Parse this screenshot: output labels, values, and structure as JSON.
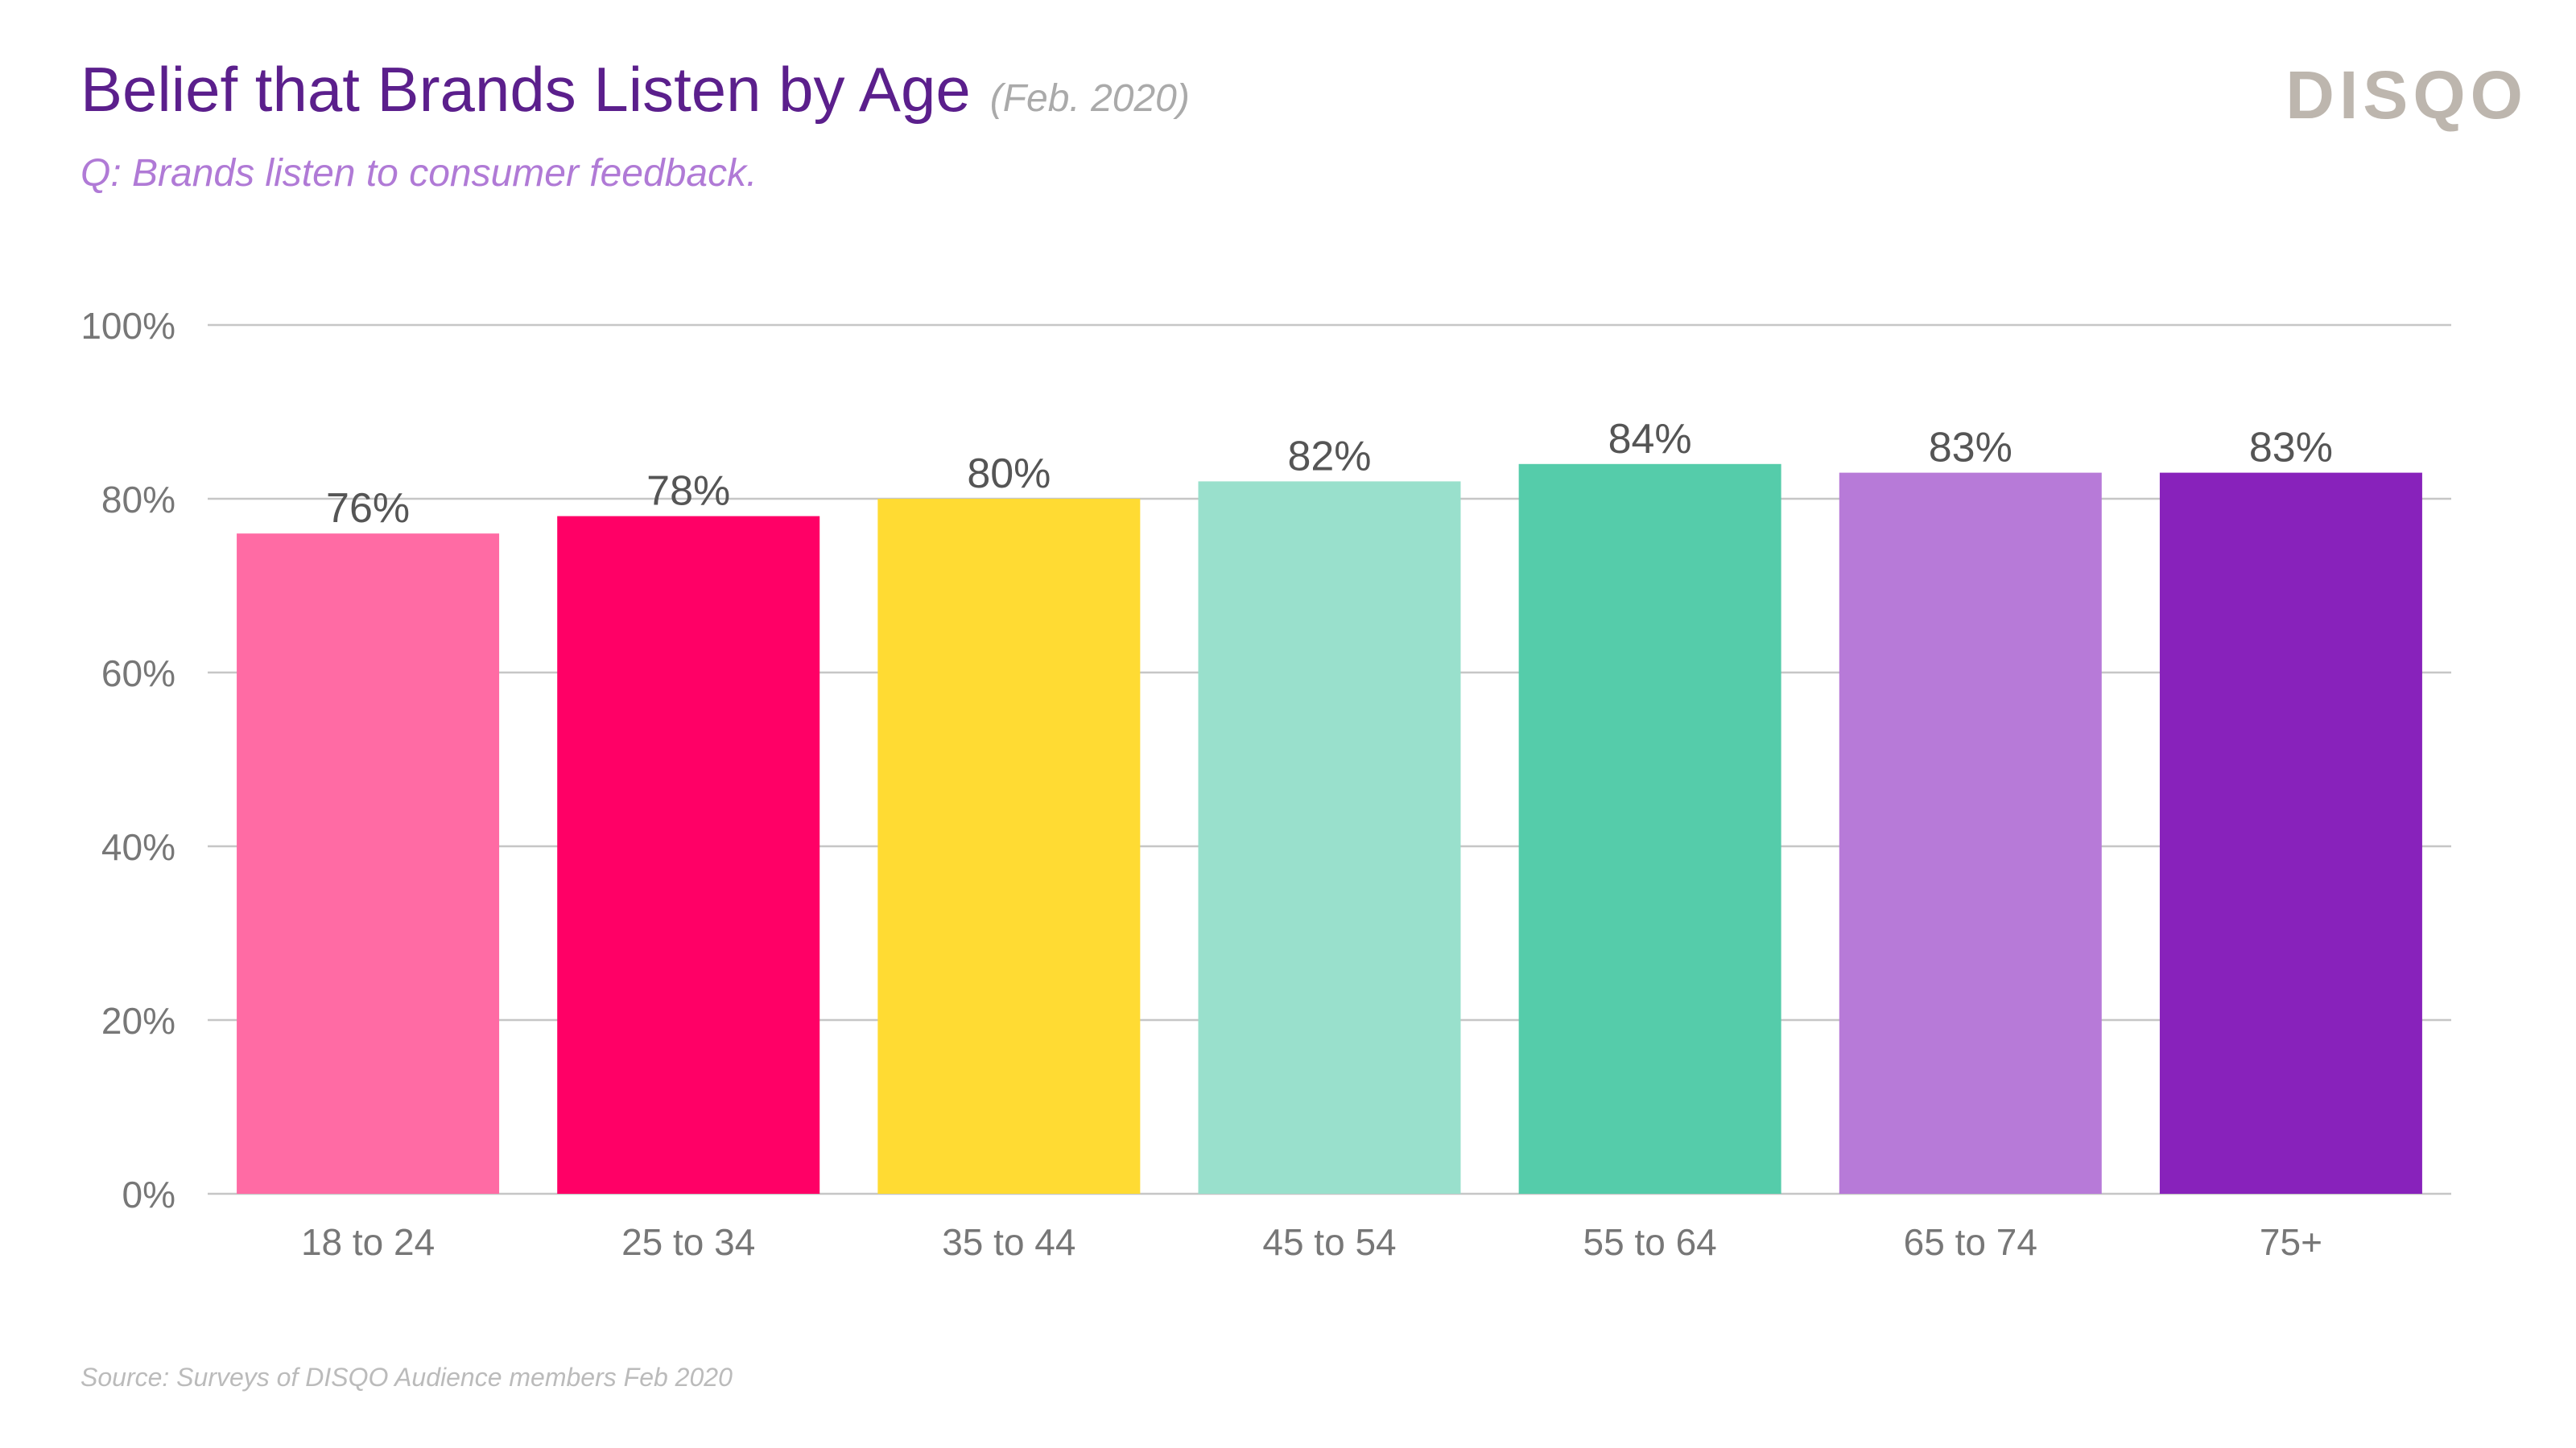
{
  "header": {
    "title": "Belief that Brands Listen by Age",
    "date": "(Feb. 2020)",
    "subtitle": "Q: Brands listen to consumer feedback."
  },
  "logo": {
    "text": "DISQO"
  },
  "footer": {
    "source": "Source: Surveys of DISQO Audience members Feb 2020"
  },
  "chart_data": {
    "type": "bar",
    "title": "Belief that Brands Listen by Age",
    "xlabel": "",
    "ylabel": "",
    "ylim": [
      0,
      100
    ],
    "y_ticks": [
      0,
      20,
      40,
      60,
      80,
      100
    ],
    "y_tick_labels": [
      "0%",
      "20%",
      "40%",
      "60%",
      "80%",
      "100%"
    ],
    "grid": true,
    "categories": [
      "18 to 24",
      "25 to 34",
      "35 to 44",
      "45 to 54",
      "55 to 64",
      "65 to 74",
      "75+"
    ],
    "values": [
      76,
      78,
      80,
      82,
      84,
      83,
      83
    ],
    "value_labels": [
      "76%",
      "78%",
      "80%",
      "82%",
      "84%",
      "83%",
      "83%"
    ],
    "colors": [
      "#ff6ba4",
      "#ff0066",
      "#ffdb33",
      "#99e0cc",
      "#55ccaa",
      "#b77ad8",
      "#8822bb"
    ],
    "gridline_color": "#c6c6c6",
    "tick_label_color": "#777777",
    "value_label_color": "#555555"
  }
}
